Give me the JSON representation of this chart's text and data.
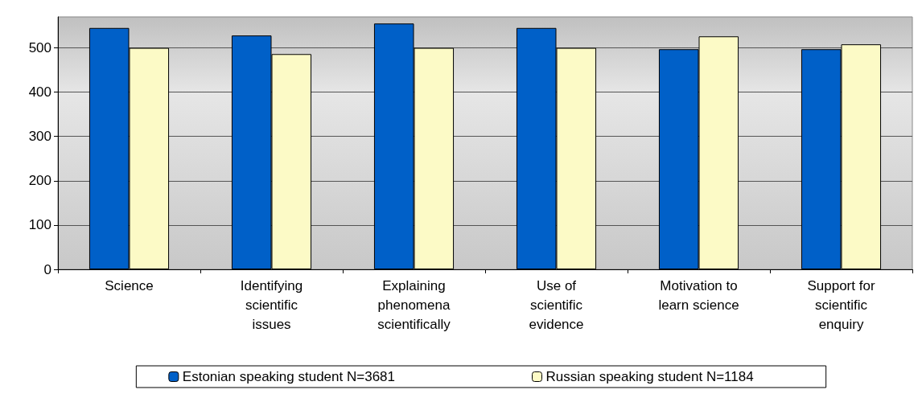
{
  "chart_data": {
    "type": "bar",
    "categories": [
      "Science",
      "Identifying scientific issues",
      "Explaining phenomena scientifically",
      "Use of scientific evidence",
      "Motivation to learn science",
      "Support for scientific enquiry"
    ],
    "series": [
      {
        "name": "Estonian speaking student N=3681",
        "color": "#0060c8",
        "values": [
          545,
          528,
          555,
          545,
          497,
          497
        ]
      },
      {
        "name": "Russian speaking student N=1184",
        "color": "#fcfac6",
        "values": [
          500,
          486,
          500,
          500,
          526,
          508
        ]
      }
    ],
    "ylim": [
      0,
      570
    ],
    "yticks": [
      0,
      100,
      200,
      300,
      400,
      500
    ],
    "grid": "y",
    "legend": "bottom"
  }
}
